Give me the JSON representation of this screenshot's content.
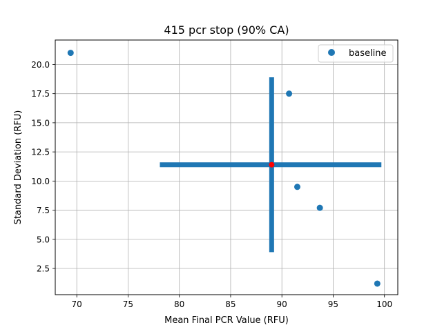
{
  "chart_data": {
    "type": "scatter",
    "title": "415 pcr stop (90% CA)",
    "xlabel": "Mean Final PCR Value (RFU)",
    "ylabel": "Standard Deviation (RFU)",
    "xlim": [
      67.9,
      101.3
    ],
    "ylim": [
      0.25,
      22.1
    ],
    "xticks": [
      70,
      75,
      80,
      85,
      90,
      95,
      100
    ],
    "xtick_labels": [
      "70",
      "75",
      "80",
      "85",
      "90",
      "95",
      "100"
    ],
    "yticks": [
      2.5,
      5.0,
      7.5,
      10.0,
      12.5,
      15.0,
      17.5,
      20.0
    ],
    "ytick_labels": [
      "2.5",
      "5.0",
      "7.5",
      "10.0",
      "12.5",
      "15.0",
      "17.5",
      "20.0"
    ],
    "grid": true,
    "legend_position": "top-right",
    "series": [
      {
        "name": "baseline",
        "color": "#1f77b4",
        "x": [
          69.4,
          90.7,
          91.5,
          93.7,
          99.3
        ],
        "y": [
          21.0,
          17.5,
          9.5,
          7.7,
          1.2
        ]
      }
    ],
    "crosshair": {
      "color": "#1f77b4",
      "center": [
        89.0,
        11.4
      ],
      "center_color": "#ff0000",
      "x_range": [
        78.1,
        99.7
      ],
      "y_range": [
        3.9,
        18.9
      ]
    }
  }
}
